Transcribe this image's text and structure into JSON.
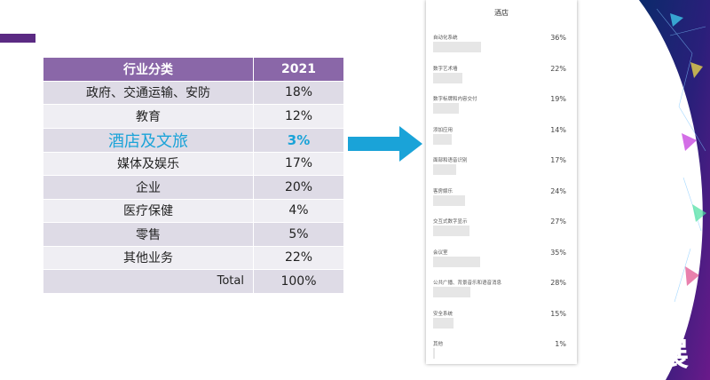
{
  "table": {
    "header": {
      "category": "行业分类",
      "year": "2021"
    },
    "rows": [
      {
        "label": "政府、交通运输、安防",
        "value": "18%"
      },
      {
        "label": "教育",
        "value": "12%"
      },
      {
        "label": "酒店及文旅",
        "value": "3%"
      },
      {
        "label": "媒体及娱乐",
        "value": "17%"
      },
      {
        "label": "企业",
        "value": "20%"
      },
      {
        "label": "医疗保健",
        "value": "4%"
      },
      {
        "label": "零售",
        "value": "5%"
      },
      {
        "label": "其他业务",
        "value": "22%"
      },
      {
        "label": "Total",
        "value": "100%"
      }
    ],
    "highlight_color": "#1aa3d8",
    "header_color": "#8a67a8"
  },
  "panel": {
    "title": "酒店",
    "items": [
      {
        "label": "自动化系统",
        "value": "36%",
        "fraction": 0.36
      },
      {
        "label": "数字艺术墙",
        "value": "22%",
        "fraction": 0.22
      },
      {
        "label": "数字标牌和内容交付",
        "value": "19%",
        "fraction": 0.19
      },
      {
        "label": "添加应用",
        "value": "14%",
        "fraction": 0.14
      },
      {
        "label": "面部和语音识别",
        "value": "17%",
        "fraction": 0.17
      },
      {
        "label": "客房娱乐",
        "value": "24%",
        "fraction": 0.24
      },
      {
        "label": "交互式数字显示",
        "value": "27%",
        "fraction": 0.27
      },
      {
        "label": "会议室",
        "value": "35%",
        "fraction": 0.35
      },
      {
        "label": "公共广播、背景音乐和语音消息",
        "value": "28%",
        "fraction": 0.28
      },
      {
        "label": "安全系统",
        "value": "15%",
        "fraction": 0.15
      },
      {
        "label": "其他",
        "value": "1%",
        "fraction": 0.01
      }
    ]
  },
  "arrow_color": "#1aa3d8",
  "brand": {
    "logo_text": "聚展"
  }
}
